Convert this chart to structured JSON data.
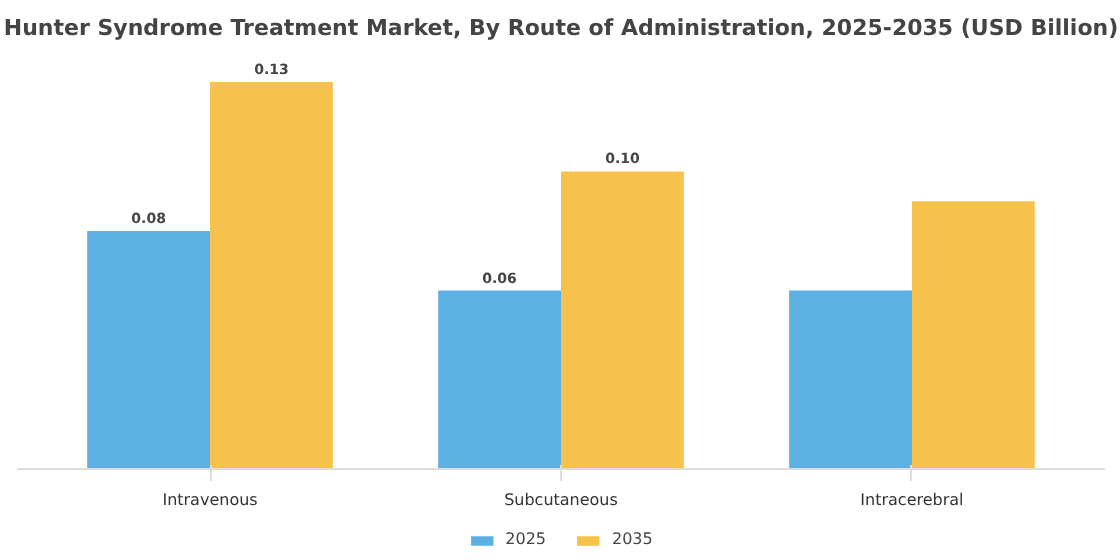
{
  "chart_data": {
    "type": "bar",
    "title": "Hunter Syndrome Treatment Market, By Route of Administration, 2025-2035 (USD Billion)",
    "categories": [
      "Intravenous",
      "Subcutaneous",
      "Intracerebral"
    ],
    "series": [
      {
        "name": "2025",
        "color": "#5db0e4",
        "values": [
          0.08,
          0.06,
          0.06
        ],
        "value_labels": [
          "0.08",
          "0.06",
          null
        ]
      },
      {
        "name": "2035",
        "color": "#f6c24c",
        "values": [
          0.13,
          0.1,
          0.09
        ],
        "value_labels": [
          "0.13",
          "0.10",
          null
        ]
      }
    ],
    "legend": "bottom",
    "tick_labels": "x"
  }
}
